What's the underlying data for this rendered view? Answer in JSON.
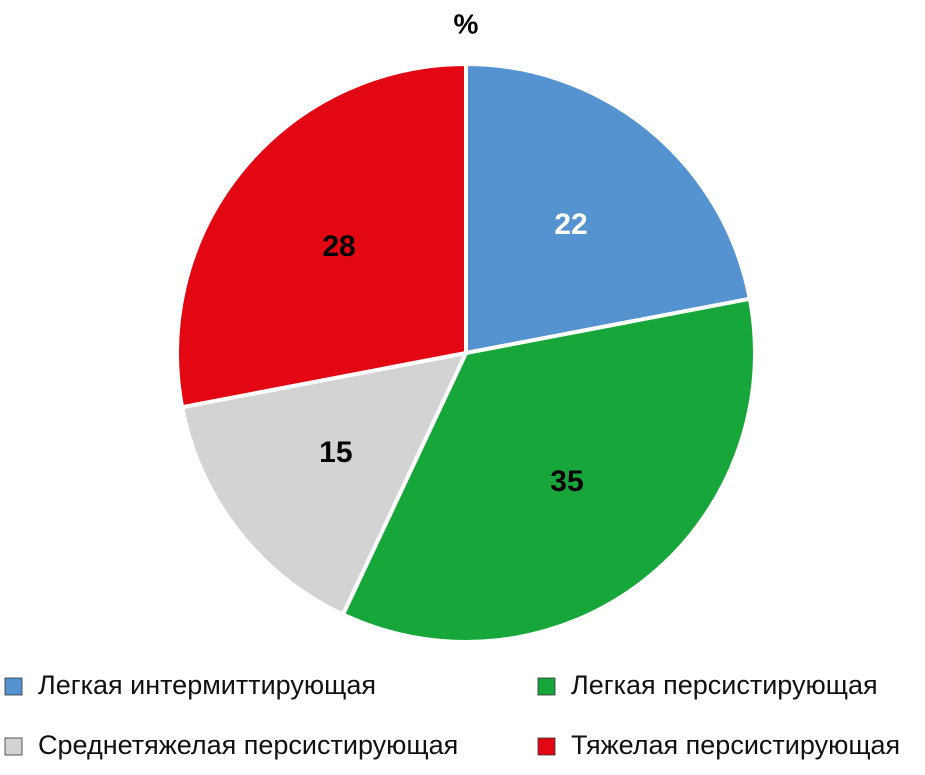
{
  "chart_data": {
    "type": "pie",
    "title": "%",
    "categories": [
      "Легкая интермиттирующая",
      "Легкая персистирующая",
      "Среднетяжелая персистирующая",
      "Тяжелая персистирующая"
    ],
    "values": [
      22,
      35,
      15,
      28
    ],
    "colors": [
      "#5592d0",
      "#17a63a",
      "#d3d3d3",
      "#e30613"
    ],
    "label_colors": [
      "#ffffff",
      "#000000",
      "#000000",
      "#000000"
    ],
    "legend": "bottom"
  }
}
